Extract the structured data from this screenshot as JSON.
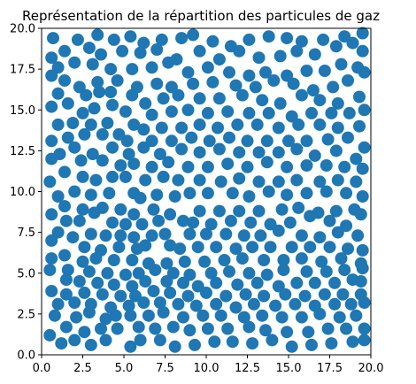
{
  "chart_data": {
    "type": "scatter",
    "title": "Représentation de la répartition des particules de gaz",
    "xlabel": "",
    "ylabel": "",
    "xlim": [
      0,
      20
    ],
    "ylim": [
      0,
      20
    ],
    "xticks": [
      0,
      2.5,
      5,
      7.5,
      10,
      12.5,
      15,
      17.5,
      20
    ],
    "yticks": [
      0,
      2.5,
      5,
      7.5,
      10,
      12.5,
      15,
      17.5,
      20
    ],
    "xtick_labels": [
      "0.0",
      "2.5",
      "5.0",
      "7.5",
      "10.0",
      "12.5",
      "15.0",
      "17.5",
      "20.0"
    ],
    "ytick_labels": [
      "0.0",
      "2.5",
      "5.0",
      "7.5",
      "10.0",
      "12.5",
      "15.0",
      "17.5",
      "20.0"
    ],
    "grid": false,
    "marker_color": "#1f77b4",
    "points": [
      [
        0.7,
        19.4
      ],
      [
        2.2,
        19.3
      ],
      [
        3.4,
        19.6
      ],
      [
        4.4,
        19.3
      ],
      [
        5.4,
        19.5
      ],
      [
        6.2,
        19.1
      ],
      [
        7.3,
        19.3
      ],
      [
        8.5,
        19.4
      ],
      [
        9.2,
        19.6
      ],
      [
        10.4,
        19.2
      ],
      [
        11.5,
        18.9
      ],
      [
        12.6,
        19.3
      ],
      [
        13.8,
        19.5
      ],
      [
        14.9,
        19.4
      ],
      [
        15.8,
        19.2
      ],
      [
        17.1,
        19.3
      ],
      [
        18.4,
        19.5
      ],
      [
        19.5,
        19.7
      ],
      [
        0.6,
        18.2
      ],
      [
        1.4,
        18.6
      ],
      [
        2.9,
        18.8
      ],
      [
        3.6,
        18.4
      ],
      [
        4.9,
        18.6
      ],
      [
        6.0,
        18.5
      ],
      [
        7.0,
        18.7
      ],
      [
        8.2,
        18.1
      ],
      [
        9.6,
        18.6
      ],
      [
        10.8,
        18.1
      ],
      [
        12.0,
        18.6
      ],
      [
        13.2,
        18.2
      ],
      [
        14.5,
        18.3
      ],
      [
        15.5,
        18.6
      ],
      [
        16.6,
        18.4
      ],
      [
        17.9,
        18.9
      ],
      [
        18.9,
        19.1
      ],
      [
        19.5,
        18.6
      ],
      [
        1.0,
        17.6
      ],
      [
        2.0,
        17.9
      ],
      [
        3.1,
        17.8
      ],
      [
        4.2,
        17.5
      ],
      [
        5.5,
        17.5
      ],
      [
        6.7,
        17.6
      ],
      [
        7.7,
        17.9
      ],
      [
        8.9,
        17.3
      ],
      [
        10.1,
        17.6
      ],
      [
        11.4,
        17.3
      ],
      [
        12.6,
        17.1
      ],
      [
        13.6,
        17.3
      ],
      [
        14.9,
        17.1
      ],
      [
        16.1,
        17.4
      ],
      [
        17.2,
        17.4
      ],
      [
        18.2,
        17.8
      ],
      [
        19.2,
        17.6
      ],
      [
        0.6,
        17.1
      ],
      [
        1.4,
        16.8
      ],
      [
        2.3,
        16.4
      ],
      [
        3.4,
        16.7
      ],
      [
        4.6,
        16.8
      ],
      [
        5.8,
        16.4
      ],
      [
        7.0,
        16.6
      ],
      [
        7.9,
        16.4
      ],
      [
        9.2,
        16.6
      ],
      [
        10.4,
        16.7
      ],
      [
        11.8,
        16.5
      ],
      [
        13.0,
        16.4
      ],
      [
        14.1,
        16.8
      ],
      [
        15.3,
        16.6
      ],
      [
        16.5,
        16.2
      ],
      [
        17.7,
        16.4
      ],
      [
        18.6,
        16.8
      ],
      [
        19.6,
        17.3
      ],
      [
        1.0,
        16.0
      ],
      [
        2.7,
        15.9
      ],
      [
        3.5,
        16.1
      ],
      [
        4.2,
        16.1
      ],
      [
        5.5,
        15.9
      ],
      [
        6.3,
        15.4
      ],
      [
        7.4,
        15.7
      ],
      [
        8.3,
        15.9
      ],
      [
        9.6,
        15.7
      ],
      [
        10.8,
        15.7
      ],
      [
        12.2,
        15.9
      ],
      [
        13.4,
        15.6
      ],
      [
        14.5,
        15.4
      ],
      [
        15.8,
        15.9
      ],
      [
        16.9,
        15.6
      ],
      [
        18.0,
        15.4
      ],
      [
        19.3,
        15.8
      ],
      [
        0.6,
        15.2
      ],
      [
        1.6,
        15.4
      ],
      [
        2.5,
        14.8
      ],
      [
        3.2,
        15.1
      ],
      [
        4.3,
        15.3
      ],
      [
        5.1,
        14.9
      ],
      [
        6.7,
        14.7
      ],
      [
        7.9,
        14.9
      ],
      [
        8.9,
        15.0
      ],
      [
        10.1,
        14.8
      ],
      [
        11.3,
        14.9
      ],
      [
        12.6,
        14.8
      ],
      [
        13.8,
        14.8
      ],
      [
        15.2,
        14.6
      ],
      [
        16.4,
        14.8
      ],
      [
        17.6,
        14.8
      ],
      [
        18.7,
        14.8
      ],
      [
        19.6,
        15.0
      ],
      [
        1.0,
        14.1
      ],
      [
        1.9,
        14.2
      ],
      [
        3.0,
        14.1
      ],
      [
        4.0,
        14.2
      ],
      [
        5.6,
        14.1
      ],
      [
        6.2,
        13.8
      ],
      [
        7.3,
        13.9
      ],
      [
        8.5,
        13.9
      ],
      [
        9.6,
        14.1
      ],
      [
        10.7,
        13.9
      ],
      [
        11.9,
        14.1
      ],
      [
        13.1,
        14.1
      ],
      [
        14.4,
        13.9
      ],
      [
        15.6,
        14.1
      ],
      [
        16.9,
        14.1
      ],
      [
        18.0,
        13.9
      ],
      [
        19.3,
        14.0
      ],
      [
        0.6,
        13.1
      ],
      [
        1.6,
        13.3
      ],
      [
        2.6,
        13.5
      ],
      [
        3.7,
        13.5
      ],
      [
        4.7,
        13.5
      ],
      [
        5.2,
        13.1
      ],
      [
        6.7,
        13.1
      ],
      [
        7.9,
        13.1
      ],
      [
        9.1,
        13.3
      ],
      [
        10.2,
        13.1
      ],
      [
        11.4,
        13.3
      ],
      [
        12.5,
        13.1
      ],
      [
        13.7,
        13.1
      ],
      [
        15.0,
        13.1
      ],
      [
        16.1,
        13.1
      ],
      [
        17.4,
        13.2
      ],
      [
        18.6,
        13.3
      ],
      [
        19.6,
        12.7
      ],
      [
        1.1,
        12.3
      ],
      [
        2.0,
        12.7
      ],
      [
        3.1,
        12.3
      ],
      [
        4.3,
        12.7
      ],
      [
        5.3,
        12.3
      ],
      [
        6.2,
        12.7
      ],
      [
        7.2,
        12.3
      ],
      [
        8.5,
        12.6
      ],
      [
        9.6,
        12.4
      ],
      [
        10.8,
        12.6
      ],
      [
        12.0,
        12.4
      ],
      [
        13.2,
        12.4
      ],
      [
        14.4,
        12.4
      ],
      [
        15.5,
        12.6
      ],
      [
        16.6,
        12.2
      ],
      [
        17.9,
        12.5
      ],
      [
        19.1,
        12.0
      ],
      [
        0.6,
        12.0
      ],
      [
        2.4,
        11.9
      ],
      [
        3.7,
        11.9
      ],
      [
        4.8,
        11.6
      ],
      [
        5.6,
        11.7
      ],
      [
        6.7,
        11.5
      ],
      [
        7.7,
        11.8
      ],
      [
        8.9,
        11.5
      ],
      [
        10.1,
        11.5
      ],
      [
        11.3,
        11.7
      ],
      [
        12.5,
        11.5
      ],
      [
        13.7,
        11.8
      ],
      [
        14.9,
        11.5
      ],
      [
        16.1,
        11.6
      ],
      [
        17.3,
        11.6
      ],
      [
        18.4,
        11.5
      ],
      [
        19.5,
        11.4
      ],
      [
        0.5,
        10.6
      ],
      [
        1.4,
        11.2
      ],
      [
        2.5,
        10.9
      ],
      [
        3.3,
        10.7
      ],
      [
        4.3,
        10.9
      ],
      [
        5.1,
        10.9
      ],
      [
        6.3,
        10.7
      ],
      [
        7.4,
        10.9
      ],
      [
        8.3,
        10.7
      ],
      [
        9.6,
        10.7
      ],
      [
        10.9,
        10.6
      ],
      [
        12.0,
        10.8
      ],
      [
        13.2,
        10.6
      ],
      [
        14.4,
        10.6
      ],
      [
        15.5,
        10.7
      ],
      [
        16.9,
        10.6
      ],
      [
        18.0,
        10.7
      ],
      [
        19.1,
        10.6
      ],
      [
        1.0,
        9.7
      ],
      [
        2.0,
        10.0
      ],
      [
        3.0,
        9.8
      ],
      [
        4.1,
        9.9
      ],
      [
        5.6,
        9.9
      ],
      [
        6.0,
        9.6
      ],
      [
        7.0,
        9.8
      ],
      [
        8.1,
        9.7
      ],
      [
        9.0,
        9.9
      ],
      [
        10.1,
        9.9
      ],
      [
        11.6,
        9.9
      ],
      [
        12.6,
        9.7
      ],
      [
        13.8,
        10.0
      ],
      [
        14.9,
        9.8
      ],
      [
        16.1,
        9.9
      ],
      [
        17.3,
        10.0
      ],
      [
        18.5,
        9.9
      ],
      [
        19.5,
        9.7
      ],
      [
        0.6,
        8.6
      ],
      [
        1.4,
        9.1
      ],
      [
        2.5,
        8.9
      ],
      [
        3.7,
        9.0
      ],
      [
        4.8,
        8.9
      ],
      [
        5.6,
        8.6
      ],
      [
        6.8,
        8.9
      ],
      [
        7.8,
        8.6
      ],
      [
        9.6,
        8.8
      ],
      [
        10.8,
        8.8
      ],
      [
        12.0,
        8.8
      ],
      [
        13.2,
        8.8
      ],
      [
        14.6,
        8.9
      ],
      [
        15.6,
        9.0
      ],
      [
        16.8,
        8.7
      ],
      [
        17.9,
        8.8
      ],
      [
        19.0,
        8.9
      ],
      [
        1.5,
        8.2
      ],
      [
        2.3,
        8.2
      ],
      [
        3.2,
        8.7
      ],
      [
        4.3,
        8.1
      ],
      [
        5.1,
        8.0
      ],
      [
        6.1,
        8.0
      ],
      [
        7.1,
        8.2
      ],
      [
        8.6,
        8.2
      ],
      [
        9.2,
        8.1
      ],
      [
        10.3,
        8.0
      ],
      [
        11.5,
        8.2
      ],
      [
        12.7,
        8.1
      ],
      [
        13.9,
        8.0
      ],
      [
        15.1,
        8.1
      ],
      [
        16.3,
        8.5
      ],
      [
        17.5,
        8.2
      ],
      [
        18.5,
        7.9
      ],
      [
        19.4,
        8.6
      ],
      [
        1.0,
        7.5
      ],
      [
        1.9,
        7.2
      ],
      [
        3.0,
        7.4
      ],
      [
        3.9,
        7.3
      ],
      [
        4.8,
        7.3
      ],
      [
        5.6,
        7.2
      ],
      [
        6.7,
        7.3
      ],
      [
        7.5,
        7.4
      ],
      [
        9.0,
        7.4
      ],
      [
        10.0,
        7.4
      ],
      [
        11.2,
        7.4
      ],
      [
        12.3,
        7.3
      ],
      [
        13.3,
        7.3
      ],
      [
        14.4,
        7.6
      ],
      [
        15.8,
        7.3
      ],
      [
        16.9,
        7.2
      ],
      [
        18.0,
        7.5
      ],
      [
        19.2,
        7.3
      ],
      [
        0.6,
        7.0
      ],
      [
        2.6,
        6.6
      ],
      [
        3.6,
        6.4
      ],
      [
        4.7,
        6.6
      ],
      [
        5.8,
        6.5
      ],
      [
        6.3,
        6.7
      ],
      [
        7.8,
        6.7
      ],
      [
        8.4,
        6.5
      ],
      [
        9.5,
        6.6
      ],
      [
        10.6,
        6.6
      ],
      [
        11.8,
        6.5
      ],
      [
        12.8,
        6.6
      ],
      [
        13.9,
        6.6
      ],
      [
        15.2,
        6.6
      ],
      [
        16.3,
        6.6
      ],
      [
        17.5,
        6.6
      ],
      [
        18.6,
        6.5
      ],
      [
        19.5,
        6.4
      ],
      [
        0.6,
        5.9
      ],
      [
        1.4,
        6.1
      ],
      [
        2.5,
        5.7
      ],
      [
        3.3,
        5.9
      ],
      [
        4.4,
        5.8
      ],
      [
        5.5,
        5.8
      ],
      [
        6.5,
        5.6
      ],
      [
        7.6,
        5.6
      ],
      [
        8.7,
        5.7
      ],
      [
        9.9,
        5.7
      ],
      [
        11.1,
        5.8
      ],
      [
        12.2,
        5.9
      ],
      [
        13.5,
        5.8
      ],
      [
        14.7,
        5.8
      ],
      [
        15.8,
        5.9
      ],
      [
        17.0,
        5.7
      ],
      [
        18.2,
        5.9
      ],
      [
        19.4,
        5.6
      ],
      [
        0.5,
        5.2
      ],
      [
        1.6,
        5.2
      ],
      [
        2.9,
        5.1
      ],
      [
        4.0,
        5.0
      ],
      [
        5.1,
        4.9
      ],
      [
        5.9,
        5.0
      ],
      [
        6.9,
        5.2
      ],
      [
        8.0,
        5.0
      ],
      [
        9.0,
        4.9
      ],
      [
        10.3,
        5.0
      ],
      [
        11.4,
        5.1
      ],
      [
        12.6,
        5.0
      ],
      [
        13.7,
        4.9
      ],
      [
        14.7,
        5.2
      ],
      [
        16.1,
        5.1
      ],
      [
        17.3,
        5.1
      ],
      [
        18.4,
        5.2
      ],
      [
        19.5,
        5.3
      ],
      [
        1.5,
        4.6
      ],
      [
        2.3,
        4.5
      ],
      [
        3.4,
        4.4
      ],
      [
        4.4,
        4.3
      ],
      [
        5.5,
        4.2
      ],
      [
        6.3,
        4.5
      ],
      [
        7.6,
        4.5
      ],
      [
        8.6,
        4.4
      ],
      [
        9.5,
        4.2
      ],
      [
        10.6,
        4.4
      ],
      [
        11.9,
        4.3
      ],
      [
        13.1,
        4.4
      ],
      [
        14.4,
        4.2
      ],
      [
        15.5,
        4.4
      ],
      [
        16.6,
        4.4
      ],
      [
        17.8,
        4.4
      ],
      [
        18.9,
        4.6
      ],
      [
        19.4,
        4.5
      ],
      [
        0.6,
        3.9
      ],
      [
        1.5,
        3.7
      ],
      [
        2.6,
        3.8
      ],
      [
        3.7,
        3.7
      ],
      [
        4.8,
        3.6
      ],
      [
        5.7,
        3.6
      ],
      [
        6.8,
        3.9
      ],
      [
        7.8,
        3.8
      ],
      [
        8.9,
        3.6
      ],
      [
        10.0,
        3.8
      ],
      [
        11.2,
        3.6
      ],
      [
        12.4,
        3.7
      ],
      [
        13.5,
        3.6
      ],
      [
        14.8,
        3.7
      ],
      [
        16.0,
        3.6
      ],
      [
        17.2,
        3.7
      ],
      [
        18.3,
        3.7
      ],
      [
        19.4,
        3.7
      ],
      [
        1.0,
        3.1
      ],
      [
        2.0,
        3.2
      ],
      [
        3.0,
        3.1
      ],
      [
        4.2,
        2.9
      ],
      [
        5.3,
        3.0
      ],
      [
        6.2,
        3.2
      ],
      [
        7.2,
        3.2
      ],
      [
        8.3,
        3.1
      ],
      [
        9.4,
        3.0
      ],
      [
        10.6,
        3.1
      ],
      [
        11.8,
        2.9
      ],
      [
        12.9,
        3.1
      ],
      [
        14.2,
        3.0
      ],
      [
        15.4,
        3.1
      ],
      [
        16.6,
        3.0
      ],
      [
        17.8,
        3.1
      ],
      [
        18.8,
        3.1
      ],
      [
        19.6,
        3.2
      ],
      [
        0.8,
        2.4
      ],
      [
        2.1,
        2.3
      ],
      [
        2.9,
        2.6
      ],
      [
        3.9,
        2.2
      ],
      [
        4.5,
        2.4
      ],
      [
        5.4,
        2.4
      ],
      [
        6.5,
        2.4
      ],
      [
        7.4,
        2.6
      ],
      [
        8.6,
        2.3
      ],
      [
        9.8,
        2.4
      ],
      [
        10.9,
        2.4
      ],
      [
        12.3,
        2.3
      ],
      [
        13.4,
        2.4
      ],
      [
        14.6,
        2.3
      ],
      [
        15.8,
        2.3
      ],
      [
        16.9,
        2.5
      ],
      [
        18.1,
        2.3
      ],
      [
        19.1,
        2.4
      ],
      [
        0.5,
        1.2
      ],
      [
        1.5,
        1.7
      ],
      [
        2.6,
        1.4
      ],
      [
        3.6,
        1.6
      ],
      [
        4.6,
        1.6
      ],
      [
        5.9,
        1.7
      ],
      [
        6.9,
        1.6
      ],
      [
        8.0,
        1.7
      ],
      [
        9.0,
        1.5
      ],
      [
        10.1,
        1.6
      ],
      [
        11.3,
        1.6
      ],
      [
        12.6,
        1.7
      ],
      [
        13.6,
        1.5
      ],
      [
        14.9,
        1.4
      ],
      [
        16.2,
        1.4
      ],
      [
        17.4,
        1.6
      ],
      [
        18.5,
        1.6
      ],
      [
        19.6,
        1.6
      ],
      [
        1.2,
        0.7
      ],
      [
        2.0,
        0.9
      ],
      [
        3.0,
        0.6
      ],
      [
        3.9,
        0.9
      ],
      [
        5.4,
        0.5
      ],
      [
        6.0,
        0.9
      ],
      [
        7.2,
        0.9
      ],
      [
        8.1,
        0.5
      ],
      [
        9.3,
        0.6
      ],
      [
        10.5,
        0.8
      ],
      [
        11.6,
        0.8
      ],
      [
        12.8,
        0.7
      ],
      [
        14.0,
        0.9
      ],
      [
        15.2,
        0.5
      ],
      [
        16.4,
        0.6
      ],
      [
        17.6,
        0.7
      ],
      [
        18.9,
        0.8
      ],
      [
        19.6,
        0.9
      ]
    ]
  }
}
